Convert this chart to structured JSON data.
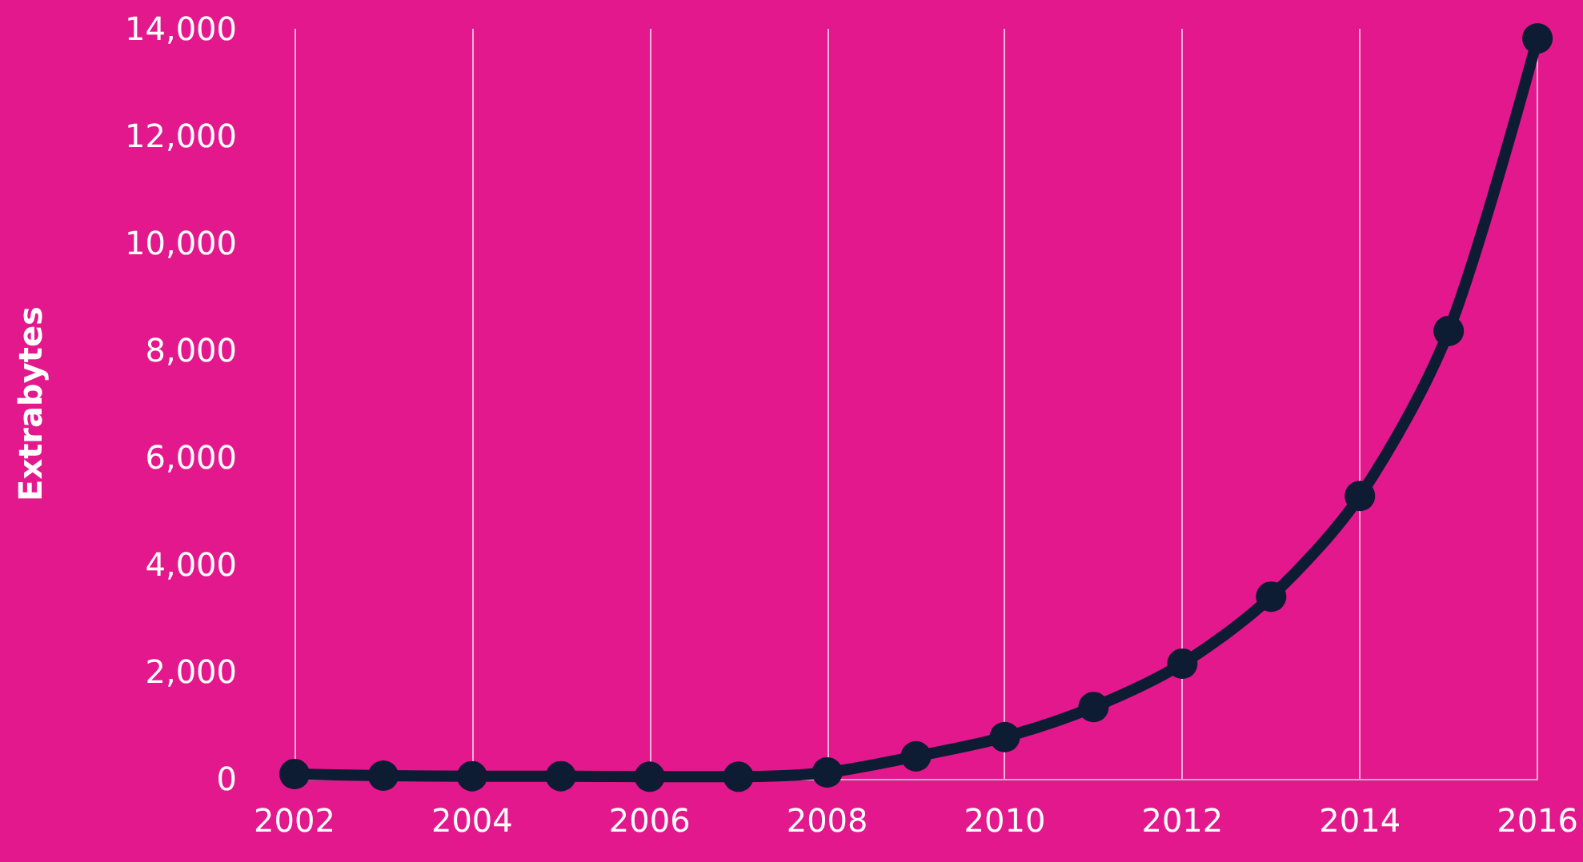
{
  "chart_data": {
    "type": "line",
    "ylabel": "Extrabytes",
    "x": [
      2002,
      2003,
      2004,
      2005,
      2006,
      2007,
      2008,
      2009,
      2010,
      2011,
      2012,
      2013,
      2014,
      2015,
      2016
    ],
    "series": [
      {
        "color": "#0d1b33",
        "values": [
          90,
          60,
          50,
          50,
          40,
          40,
          120,
          420,
          780,
          1340,
          2150,
          3400,
          5280,
          8360,
          13820
        ]
      }
    ],
    "xlim": [
      2002,
      2016
    ],
    "xticks": [
      2002,
      2004,
      2006,
      2008,
      2010,
      2012,
      2014,
      2016
    ],
    "ylim": [
      0,
      14000
    ],
    "yticks": [
      0,
      {
        "value": 2000,
        "label": "2,000"
      },
      {
        "value": 4000,
        "label": "4,000"
      },
      {
        "value": 6000,
        "label": "6,000"
      },
      {
        "value": 8000,
        "label": "8,000"
      },
      {
        "value": 10000,
        "label": "10,000"
      },
      {
        "value": 12000,
        "label": "12,000"
      },
      {
        "value": 14000,
        "label": "14,000"
      }
    ],
    "grid": "x",
    "marker": "circle",
    "line_style": "solid"
  }
}
